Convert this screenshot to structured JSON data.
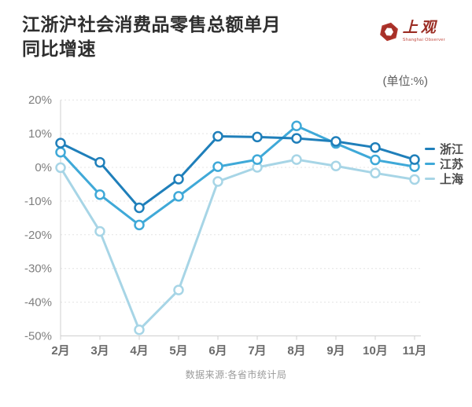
{
  "header": {
    "title": "江浙沪社会消费品零售总额单月\n同比增速",
    "logo": {
      "name": "上观",
      "subtitle": "Shanghai Observer",
      "mark_color": "#b2372e",
      "mark_dark_color": "#8f241c"
    },
    "unit_label": "(单位:%)"
  },
  "footer": {
    "source": "数据来源:各省市统计局"
  },
  "chart_data": {
    "type": "line",
    "title": "江浙沪社会消费品零售总额单月同比增速",
    "unit": "%",
    "categories": [
      "2月",
      "3月",
      "4月",
      "5月",
      "6月",
      "7月",
      "8月",
      "9月",
      "10月",
      "11月"
    ],
    "series": [
      {
        "name": "浙江",
        "color": "#1f7fba",
        "values": [
          7.2,
          1.5,
          -12.0,
          -3.5,
          9.2,
          9.0,
          8.6,
          7.7,
          5.9,
          2.3
        ]
      },
      {
        "name": "江苏",
        "color": "#3fa9d8",
        "values": [
          4.5,
          -8.1,
          -17.1,
          -8.6,
          0.2,
          2.3,
          12.3,
          7.1,
          2.2,
          0.2
        ]
      },
      {
        "name": "上海",
        "color": "#a7d5e6",
        "values": [
          -0.1,
          -19.0,
          -48.2,
          -36.4,
          -4.2,
          0.0,
          2.3,
          0.4,
          -1.7,
          -3.6
        ]
      }
    ],
    "ylim": [
      -50,
      20
    ],
    "ytick_step": 10,
    "yticks": [
      "20%",
      "10%",
      "0%",
      "-10%",
      "-20%",
      "-30%",
      "-40%",
      "-50%"
    ],
    "grid": "horizontal-dashed",
    "legend_position": "right",
    "marker": "open-circle"
  }
}
